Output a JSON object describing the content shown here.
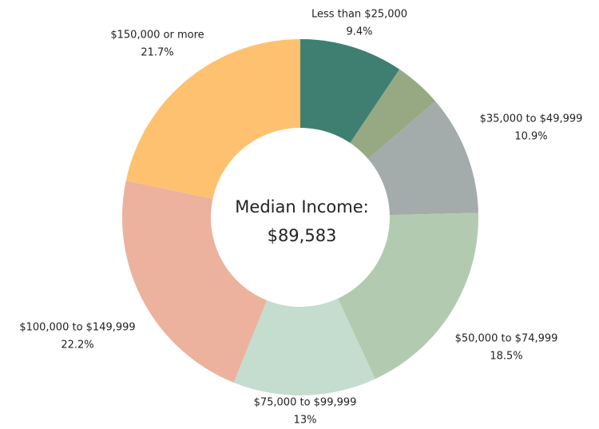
{
  "chart_data": {
    "type": "pie",
    "categories": [
      "Less than $25,000",
      null,
      "$35,000 to $49,999",
      "$50,000 to $74,999",
      "$75,000 to $99,999",
      "$100,000 to $149,999",
      "$150,000 or more"
    ],
    "values": [
      9.4,
      4.3,
      10.9,
      18.5,
      13,
      22.2,
      21.7
    ],
    "value_labels": [
      "9.4%",
      null,
      "10.9%",
      "18.5%",
      "13%",
      "22.2%",
      "21.7%"
    ],
    "colors": [
      "#3e7f72",
      "#97a982",
      "#a3abab",
      "#b2cbb0",
      "#c4ddcf",
      "#ecb29e",
      "#fec170"
    ],
    "center_label": [
      "Median Income:",
      "$89,583"
    ]
  }
}
